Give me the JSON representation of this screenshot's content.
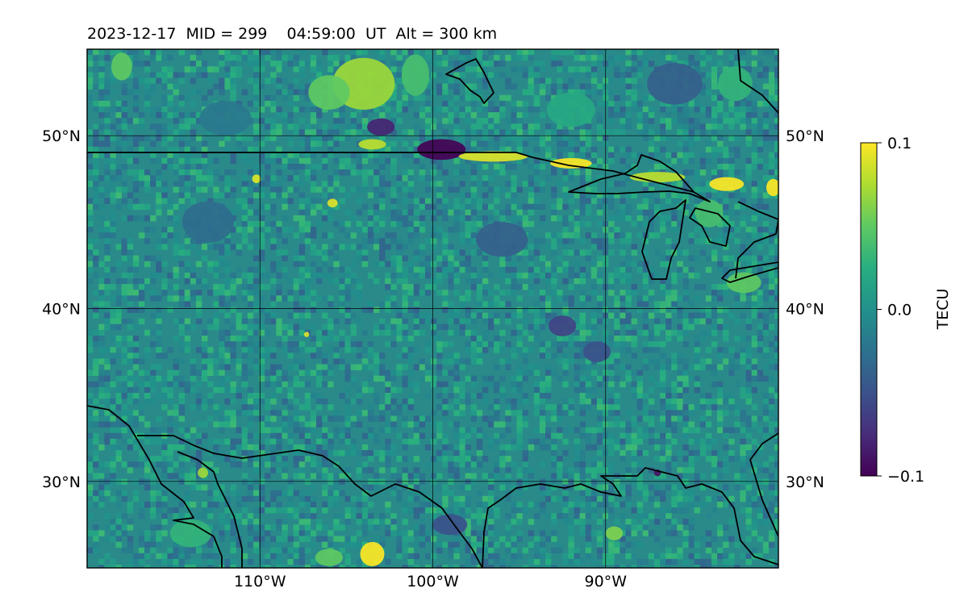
{
  "title": "2023-12-17  MID = 299    04:59:00  UT  Alt = 300 km",
  "map": {
    "lon_range": [
      -120,
      -80
    ],
    "lat_range": [
      25,
      55
    ],
    "lon_ticks": [
      {
        "value": -110,
        "label": "110°W"
      },
      {
        "value": -100,
        "label": "100°W"
      },
      {
        "value": -90,
        "label": "90°W"
      }
    ],
    "lat_ticks": [
      {
        "value": 50,
        "label": "50°N"
      },
      {
        "value": 40,
        "label": "40°N"
      },
      {
        "value": 30,
        "label": "30°N"
      }
    ],
    "gridlines": true,
    "colormap": "viridis",
    "background_color": "#2a8a8a",
    "features": [
      {
        "lon": -104,
        "lat": 53.0,
        "value": 0.07,
        "rx": 1.8,
        "ry": 1.5
      },
      {
        "lon": -106,
        "lat": 52.5,
        "value": 0.05,
        "rx": 1.2,
        "ry": 1.0
      },
      {
        "lon": -118,
        "lat": 54.0,
        "value": 0.05,
        "rx": 0.6,
        "ry": 0.8
      },
      {
        "lon": -101,
        "lat": 53.5,
        "value": 0.04,
        "rx": 0.8,
        "ry": 1.2
      },
      {
        "lon": -92,
        "lat": 51.5,
        "value": 0.02,
        "rx": 1.4,
        "ry": 1.0
      },
      {
        "lon": -99.5,
        "lat": 49.2,
        "value": -0.1,
        "rx": 1.4,
        "ry": 0.6
      },
      {
        "lon": -103.0,
        "lat": 50.5,
        "value": -0.08,
        "rx": 0.8,
        "ry": 0.5
      },
      {
        "lon": -96.5,
        "lat": 48.8,
        "value": 0.09,
        "rx": 2.0,
        "ry": 0.3
      },
      {
        "lon": -92.0,
        "lat": 48.4,
        "value": 0.1,
        "rx": 1.2,
        "ry": 0.3
      },
      {
        "lon": -87.0,
        "lat": 47.6,
        "value": 0.08,
        "rx": 1.6,
        "ry": 0.3
      },
      {
        "lon": -83.0,
        "lat": 47.2,
        "value": 0.1,
        "rx": 1.0,
        "ry": 0.4
      },
      {
        "lon": -80.3,
        "lat": 47.0,
        "value": 0.1,
        "rx": 0.4,
        "ry": 0.5
      },
      {
        "lon": -103.5,
        "lat": 49.5,
        "value": 0.08,
        "rx": 0.8,
        "ry": 0.3
      },
      {
        "lon": -110.2,
        "lat": 47.5,
        "value": 0.09,
        "rx": 0.25,
        "ry": 0.25
      },
      {
        "lon": -105.8,
        "lat": 46.1,
        "value": 0.09,
        "rx": 0.3,
        "ry": 0.25
      },
      {
        "lon": -107.3,
        "lat": 38.5,
        "value": 0.09,
        "rx": 0.15,
        "ry": 0.15
      },
      {
        "lon": -103.5,
        "lat": 25.8,
        "value": 0.1,
        "rx": 0.7,
        "ry": 0.7
      },
      {
        "lon": -106.0,
        "lat": 25.6,
        "value": 0.05,
        "rx": 0.8,
        "ry": 0.5
      },
      {
        "lon": -89.5,
        "lat": 27.0,
        "value": 0.06,
        "rx": 0.5,
        "ry": 0.4
      },
      {
        "lon": -113.3,
        "lat": 30.5,
        "value": 0.07,
        "rx": 0.3,
        "ry": 0.3
      },
      {
        "lon": -87.0,
        "lat": 30.5,
        "value": -0.09,
        "rx": 0.2,
        "ry": 0.2
      },
      {
        "lon": -92.5,
        "lat": 39.0,
        "value": -0.06,
        "rx": 0.8,
        "ry": 0.6
      },
      {
        "lon": -90.5,
        "lat": 37.5,
        "value": -0.05,
        "rx": 0.8,
        "ry": 0.6
      },
      {
        "lon": -96.0,
        "lat": 44.0,
        "value": -0.04,
        "rx": 1.5,
        "ry": 1.0
      },
      {
        "lon": -82.0,
        "lat": 41.5,
        "value": 0.05,
        "rx": 1.0,
        "ry": 0.6
      },
      {
        "lon": -84.0,
        "lat": 45.5,
        "value": 0.04,
        "rx": 0.8,
        "ry": 0.8
      },
      {
        "lon": -99.0,
        "lat": 27.5,
        "value": -0.05,
        "rx": 1.0,
        "ry": 0.6
      },
      {
        "lon": -114.0,
        "lat": 27.0,
        "value": 0.03,
        "rx": 1.2,
        "ry": 0.8
      },
      {
        "lon": -113.0,
        "lat": 45.0,
        "value": -0.03,
        "rx": 1.5,
        "ry": 1.2
      },
      {
        "lon": -86.0,
        "lat": 53.0,
        "value": -0.04,
        "rx": 1.6,
        "ry": 1.2
      },
      {
        "lon": -82.5,
        "lat": 53.0,
        "value": 0.03,
        "rx": 1.0,
        "ry": 1.0
      },
      {
        "lon": -112.0,
        "lat": 51.0,
        "value": -0.02,
        "rx": 1.5,
        "ry": 1.0
      }
    ]
  },
  "colorbar": {
    "label": "TECU",
    "min": -0.1,
    "max": 0.1,
    "ticks": [
      {
        "value": 0.1,
        "label": "0.1"
      },
      {
        "value": 0.0,
        "label": "0.0"
      },
      {
        "value": -0.1,
        "label": "−0.1"
      }
    ]
  }
}
